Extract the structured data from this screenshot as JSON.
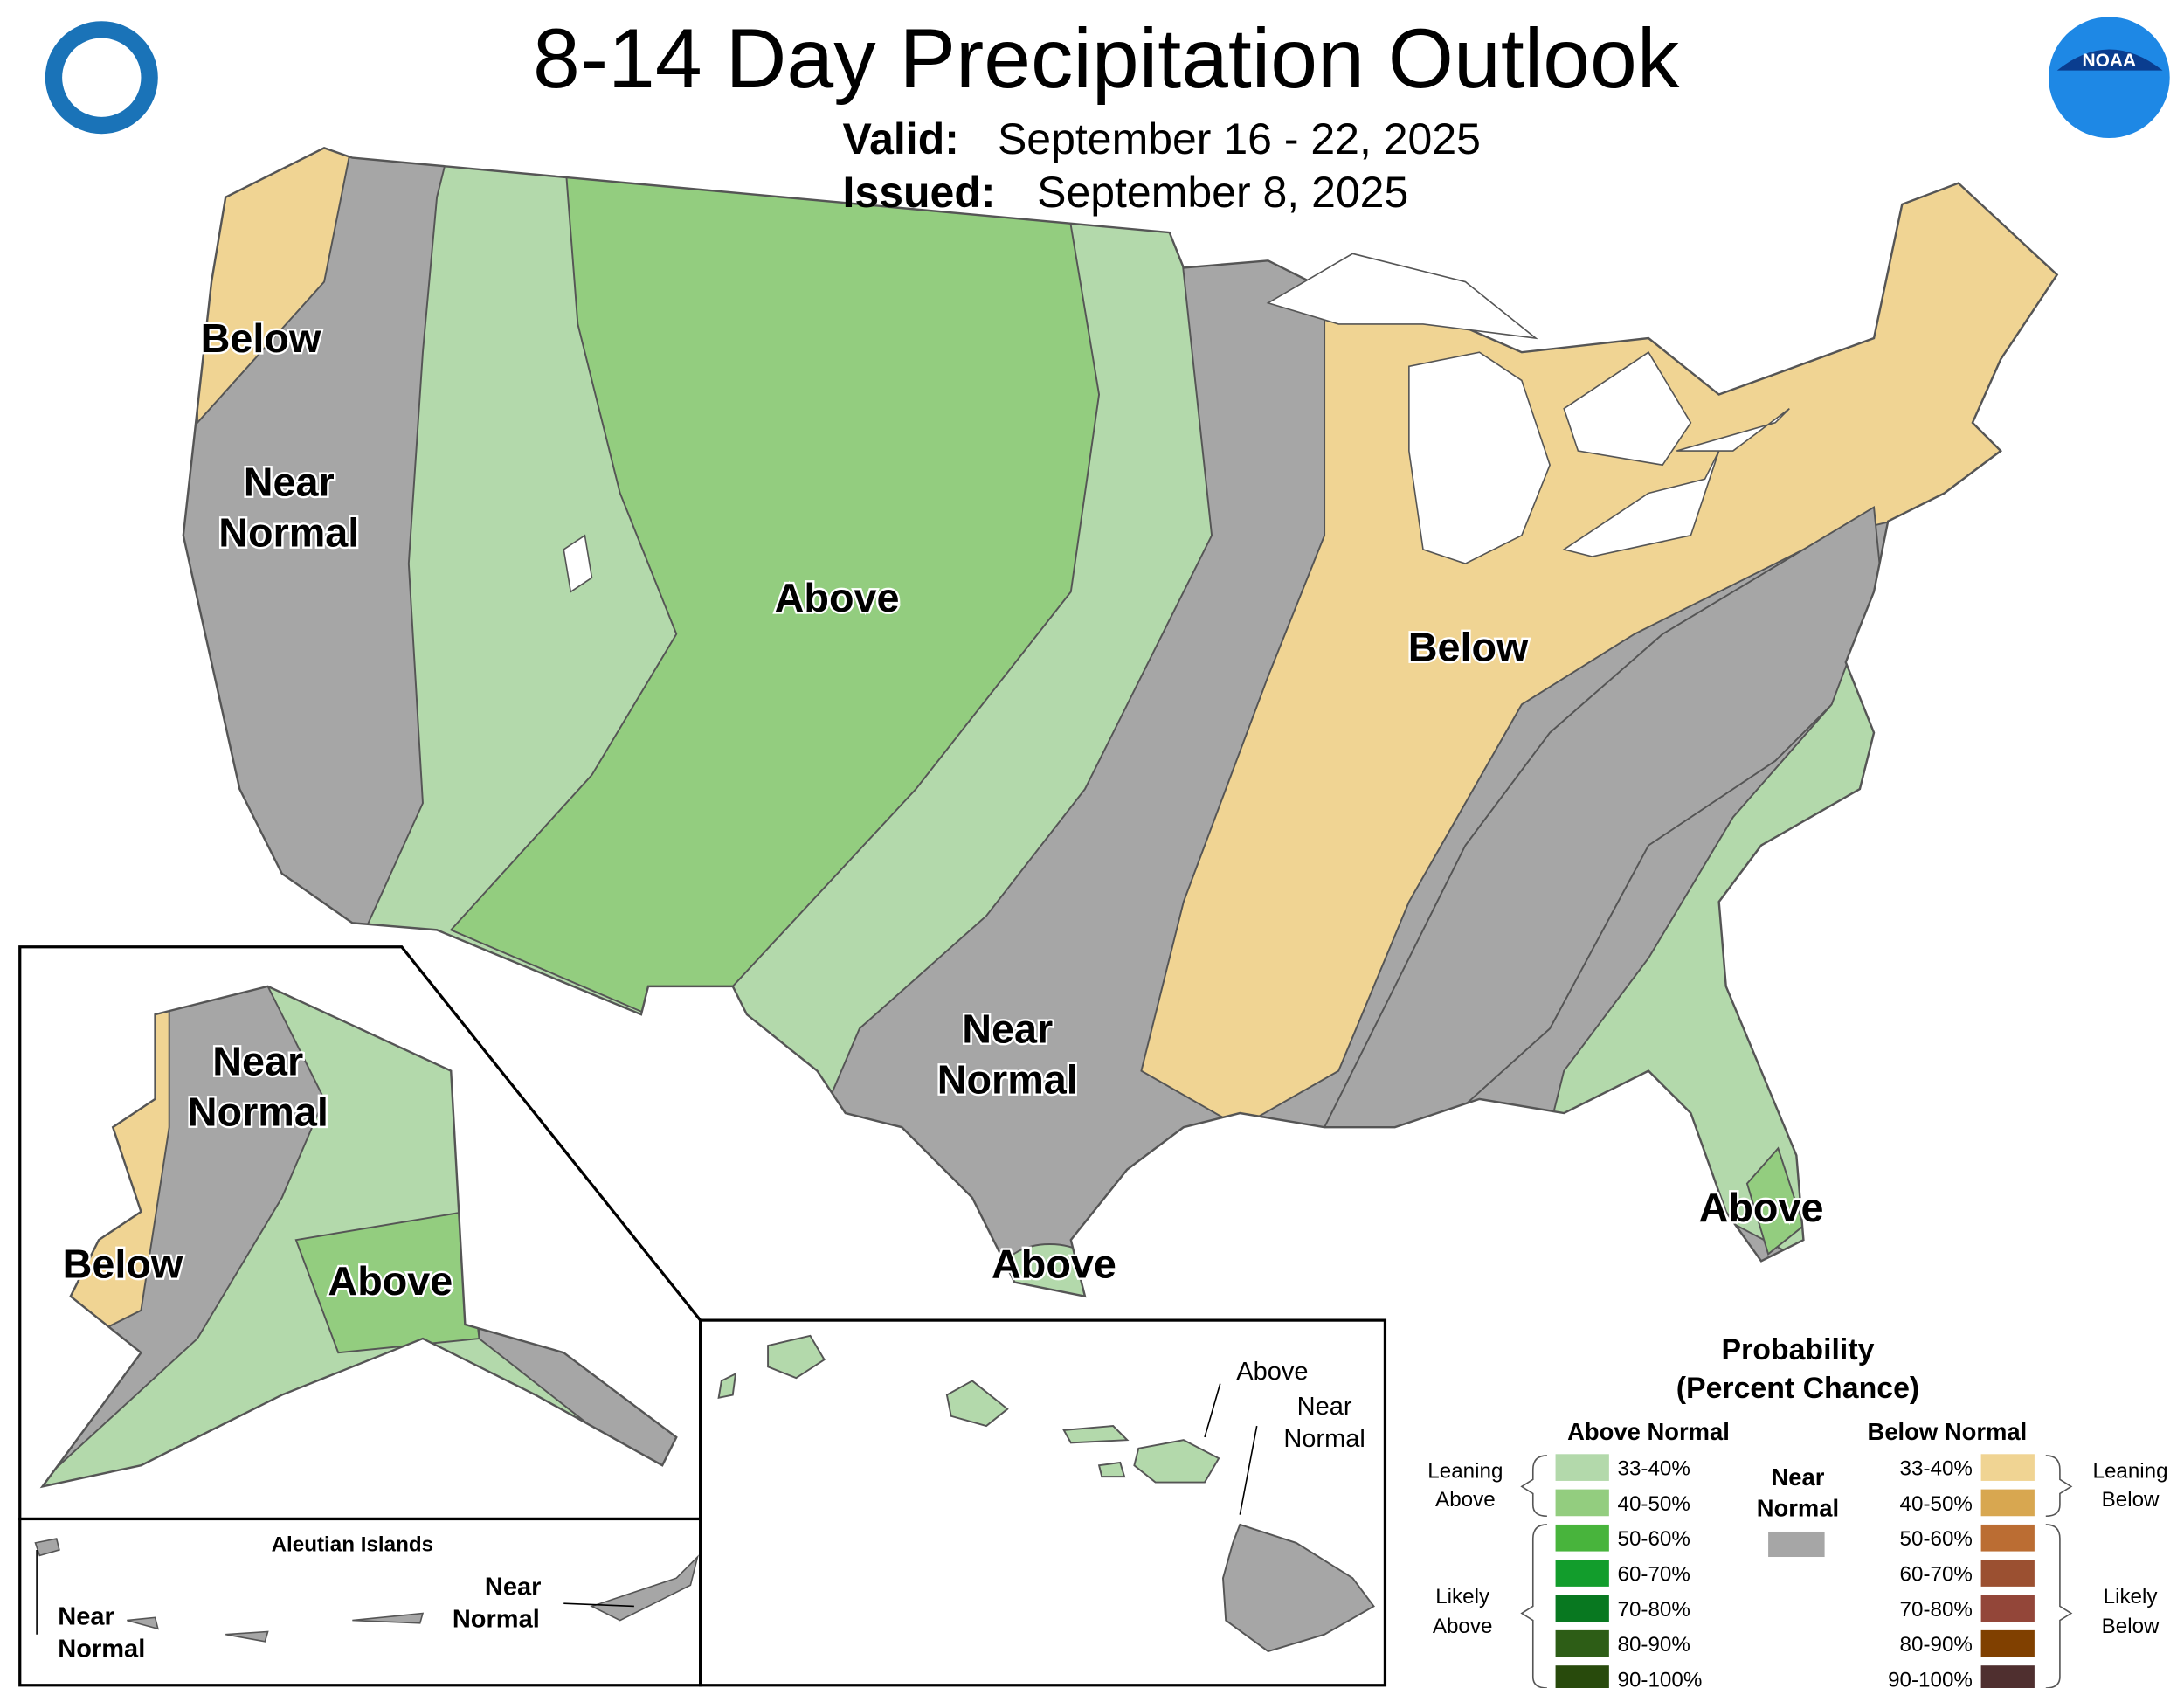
{
  "header": {
    "title": "8-14 Day Precipitation Outlook",
    "valid_label": "Valid:",
    "valid": "September 16 - 22, 2025",
    "issued_label": "Issued:",
    "issued": "September 8, 2025",
    "noaa_logo": "NOAA"
  },
  "conus_labels": {
    "west_below": "Below",
    "west_near": [
      "Near",
      "Normal"
    ],
    "central_above": "Above",
    "east_below": "Below",
    "texas_near": [
      "Near",
      "Normal"
    ],
    "texas_above": "Above",
    "florida_above": "Above"
  },
  "alaska_labels": {
    "near": [
      "Near",
      "Normal"
    ],
    "below": "Below",
    "above": "Above"
  },
  "aleutian_labels": {
    "title": "Aleutian Islands",
    "west_near": [
      "Near",
      "Normal"
    ],
    "east_near": [
      "Near",
      "Normal"
    ]
  },
  "hawaii_labels": {
    "above": "Above",
    "near": [
      "Near",
      "Normal"
    ]
  },
  "legend": {
    "title": [
      "Probability",
      "(Percent Chance)"
    ],
    "above_header": "Above Normal",
    "below_header": "Below Normal",
    "near": [
      "Near",
      "Normal"
    ],
    "near_color": "#a6a6a6",
    "above_rows": [
      {
        "label": "33-40%",
        "color": "#b3d9ab"
      },
      {
        "label": "40-50%",
        "color": "#93cd7f"
      },
      {
        "label": "50-60%",
        "color": "#48b43c"
      },
      {
        "label": "60-70%",
        "color": "#129d2c"
      },
      {
        "label": "70-80%",
        "color": "#087820"
      },
      {
        "label": "80-90%",
        "color": "#2d5d16"
      },
      {
        "label": "90-100%",
        "color": "#284a0c"
      }
    ],
    "below_rows": [
      {
        "label": "33-40%",
        "color": "#f0d493"
      },
      {
        "label": "40-50%",
        "color": "#d8a750"
      },
      {
        "label": "50-60%",
        "color": "#bb6d33"
      },
      {
        "label": "60-70%",
        "color": "#9b5031"
      },
      {
        "label": "70-80%",
        "color": "#934639"
      },
      {
        "label": "80-90%",
        "color": "#804000"
      },
      {
        "label": "90-100%",
        "color": "#4f2f2f"
      }
    ],
    "leaning_above": [
      "Leaning",
      "Above"
    ],
    "likely_above": [
      "Likely",
      "Above"
    ],
    "leaning_below": [
      "Leaning",
      "Below"
    ],
    "likely_below": [
      "Likely",
      "Below"
    ]
  }
}
